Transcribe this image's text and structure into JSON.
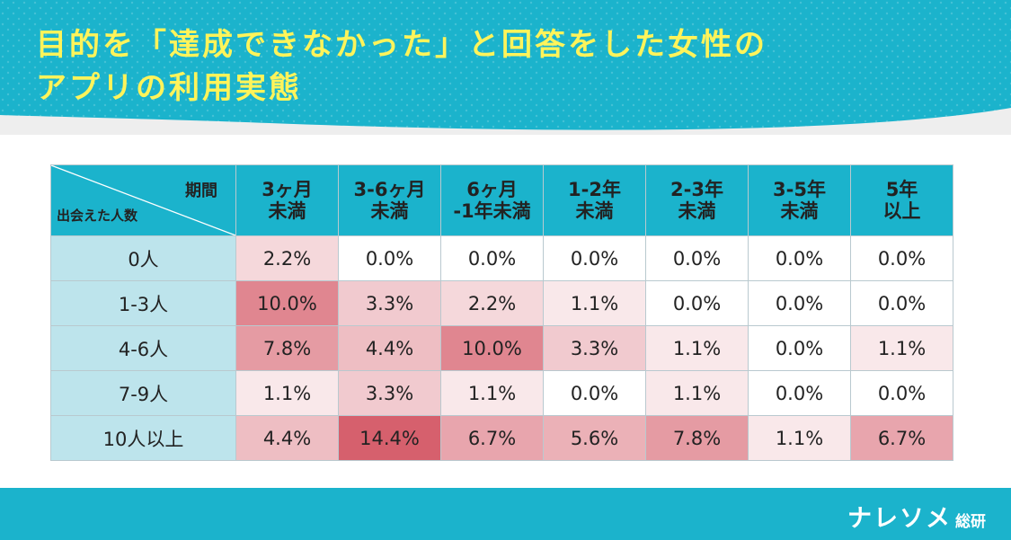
{
  "title": "目的を「達成できなかった」と回答をした女性のアプリの利用実態",
  "chart_data": {
    "type": "heatmap",
    "corner_column_label": "期間",
    "corner_row_label": "出会えた人数",
    "columns": [
      "3ヶ月未満",
      "3-6ヶ月未満",
      "6ヶ月-1年未満",
      "1-2年未満",
      "2-3年未満",
      "3-5年未満",
      "5年以上"
    ],
    "rows": [
      {
        "label": "0人",
        "values": [
          2.2,
          0.0,
          0.0,
          0.0,
          0.0,
          0.0,
          0.0
        ],
        "display": [
          "2.2%",
          "0.0%",
          "0.0%",
          "0.0%",
          "0.0%",
          "0.0%",
          "0.0%"
        ]
      },
      {
        "label": "1-3人",
        "values": [
          10.0,
          3.3,
          2.2,
          1.1,
          0.0,
          0.0,
          0.0
        ],
        "display": [
          "10.0%",
          "3.3%",
          "2.2%",
          "1.1%",
          "0.0%",
          "0.0%",
          "0.0%"
        ]
      },
      {
        "label": "4-6人",
        "values": [
          7.8,
          4.4,
          10.0,
          3.3,
          1.1,
          0.0,
          1.1
        ],
        "display": [
          "7.8%",
          "4.4%",
          "10.0%",
          "3.3%",
          "1.1%",
          "0.0%",
          "1.1%"
        ]
      },
      {
        "label": "7-9人",
        "values": [
          1.1,
          3.3,
          1.1,
          0.0,
          1.1,
          0.0,
          0.0
        ],
        "display": [
          "1.1%",
          "3.3%",
          "1.1%",
          "0.0%",
          "1.1%",
          "0.0%",
          "0.0%"
        ]
      },
      {
        "label": "10人以上",
        "values": [
          4.4,
          14.4,
          6.7,
          5.6,
          7.8,
          1.1,
          6.7
        ],
        "display": [
          "4.4%",
          "14.4%",
          "6.7%",
          "5.6%",
          "7.8%",
          "1.1%",
          "6.7%"
        ]
      }
    ],
    "unit": "%",
    "colors": {
      "low": "#ffffff",
      "high": "#d6606d",
      "header": "#1bb3cc",
      "row_header": "#bde4ec"
    }
  },
  "brand": {
    "main": "ナレソメ",
    "sub": "総研"
  },
  "colors": {
    "title": "#fff45a",
    "header_bg": "#1bb3cc",
    "footer_bg": "#1bb3cc"
  }
}
